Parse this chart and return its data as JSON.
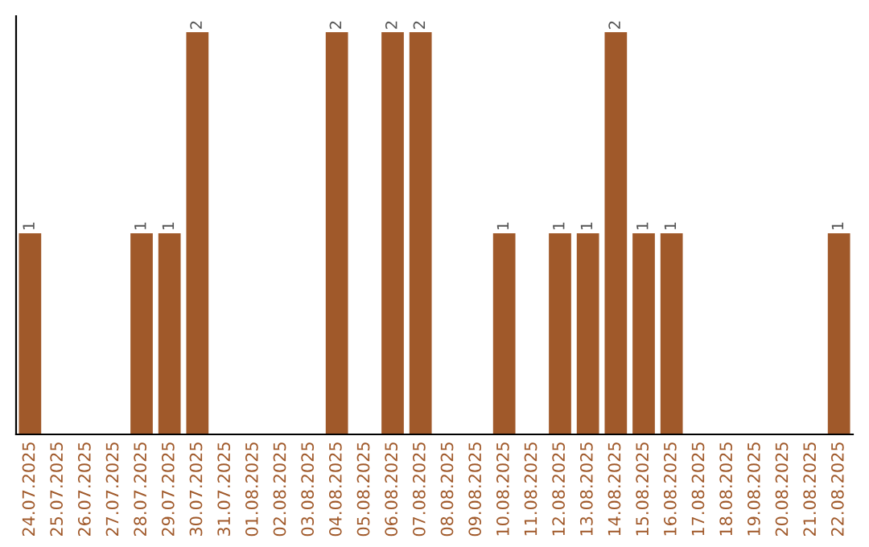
{
  "chart_data": {
    "type": "bar",
    "categories": [
      "24.07.2025",
      "25.07.2025",
      "26.07.2025",
      "27.07.2025",
      "28.07.2025",
      "29.07.2025",
      "30.07.2025",
      "31.07.2025",
      "01.08.2025",
      "02.08.2025",
      "03.08.2025",
      "04.08.2025",
      "05.08.2025",
      "06.08.2025",
      "07.08.2025",
      "08.08.2025",
      "09.08.2025",
      "10.08.2025",
      "11.08.2025",
      "12.08.2025",
      "13.08.2025",
      "14.08.2025",
      "15.08.2025",
      "16.08.2025",
      "17.08.2025",
      "18.08.2025",
      "19.08.2025",
      "20.08.2025",
      "21.08.2025",
      "22.08.2025"
    ],
    "values": [
      1,
      0,
      0,
      0,
      1,
      1,
      2,
      0,
      0,
      0,
      0,
      2,
      0,
      2,
      2,
      0,
      0,
      1,
      0,
      1,
      1,
      2,
      1,
      1,
      0,
      0,
      0,
      0,
      0,
      1
    ],
    "value_labels": [
      "1",
      null,
      null,
      null,
      "1",
      "1",
      "2",
      null,
      null,
      null,
      null,
      "2",
      null,
      "2",
      "2",
      null,
      null,
      "1",
      null,
      "1",
      "1",
      "2",
      "1",
      "1",
      null,
      null,
      null,
      null,
      null,
      "1"
    ],
    "color": "#a0592a",
    "ylim": [
      0,
      2.08
    ],
    "tick_labels": "x"
  }
}
